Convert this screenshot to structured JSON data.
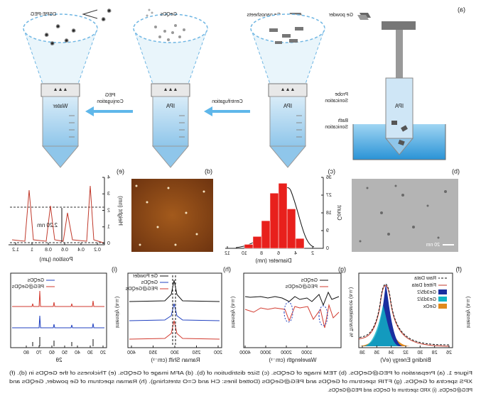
{
  "panel_a": {
    "label": "(a)",
    "legend": [
      "Ge powder",
      "Ge nanosheets",
      "GeQDs",
      "DSPE-PEG"
    ],
    "steps": [
      "Probe",
      "Sonication",
      "Bath",
      "Sonication",
      "Centrifugation",
      "PEG",
      "Conjugation"
    ],
    "tubes": [
      "IPA",
      "IPA",
      "IPA",
      "Water"
    ]
  },
  "panel_b": {
    "label": "(b)",
    "scale_bar": "20 nm"
  },
  "panel_c": {
    "label": "(c)",
    "x_label": "Diameter (nm)",
    "y_label": "Count",
    "xticks": [
      2,
      4,
      6,
      8,
      10,
      12
    ],
    "yticks": [
      0,
      9,
      18,
      27,
      36
    ],
    "bins": [
      3,
      4,
      5,
      6,
      7,
      8,
      9,
      10
    ],
    "counts": [
      5,
      20,
      33,
      28,
      14,
      6,
      2
    ]
  },
  "panel_d": {
    "label": "(d)"
  },
  "panel_e": {
    "label": "(e)",
    "x_label": "Position (µm)",
    "y_label": "Height (nm)",
    "xticks": [
      0.2,
      0.4,
      0.6,
      0.8,
      1,
      1.2
    ],
    "yticks": [
      0,
      1,
      2,
      3,
      4
    ],
    "annotation": "2.20 nm"
  },
  "panel_f": {
    "label": "(f)",
    "x_label": "Binding Energy (eV)",
    "y_label": "Intensity (a.u.)",
    "xticks": [
      26,
      28,
      30,
      32,
      34,
      36,
      38
    ],
    "legend": [
      "Raw Data",
      "Fitted Data",
      "Ge3d5/2",
      "Ge3d3/2",
      "GeOx"
    ]
  },
  "panel_g": {
    "label": "(g)",
    "x_label": "Wavelength (cm⁻¹)",
    "y_label": "% Transmittance (a.u.)",
    "xticks": [
      1000,
      2000,
      3000,
      4000
    ],
    "legend": [
      "GeQDs",
      "PEG@GeQDs"
    ]
  },
  "panel_h": {
    "label": "(h)",
    "x_label": "Raman Shift (cm⁻¹)",
    "y_label": "Intensity (a.u.)",
    "xticks": [
      200,
      250,
      300,
      350,
      400
    ],
    "legend": [
      "Ge Powder",
      "GeQDs",
      "PEG@GeQDs"
    ]
  },
  "panel_i": {
    "label": "(i)",
    "x_label": "2θ",
    "y_label": "Intensity (a.u.)",
    "xticks": [
      20,
      30,
      40,
      50,
      60,
      70,
      80
    ],
    "legend": [
      "GeQDs",
      "PEG@GeQDs"
    ]
  },
  "caption": [
    "Figure 1. (a) Preparation of PEG@GeQDs. (b) TEM image of GeQDs. (c) Size distribution of (b). (d) AFM image of GeQDs. (e) Thickness of the GeQDs in (d). (f)",
    "XPS spectra of GeQDs. (g) FTIR spectrum of GeQDs and PEG@GeQDs (Dotted lines: CH and C=O stretching). (h) Raman spectrum of Ge powder, GeQDs and",
    "PEG@GeQDs. (i) XRD spectrum of GeQDs and PEG@GeQDs."
  ]
}
